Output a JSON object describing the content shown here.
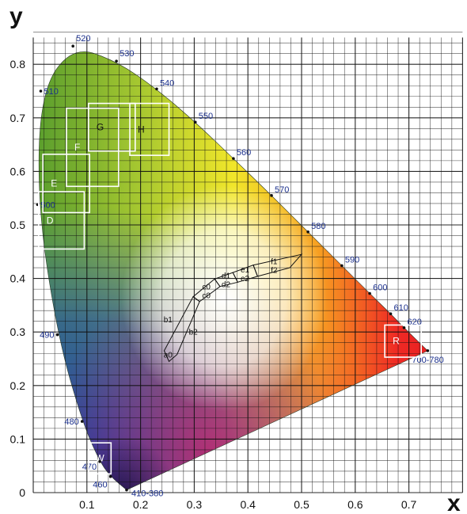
{
  "chart_data": {
    "type": "scatter",
    "title": "",
    "xlabel": "x",
    "ylabel": "y",
    "xlim": [
      0,
      0.8
    ],
    "ylim": [
      0,
      0.85
    ],
    "x_ticks": [
      {
        "value": 0.1,
        "label": "0.1"
      },
      {
        "value": 0.2,
        "label": "0.2"
      },
      {
        "value": 0.3,
        "label": "0.3"
      },
      {
        "value": 0.4,
        "label": "0.4"
      },
      {
        "value": 0.5,
        "label": "0.5"
      },
      {
        "value": 0.6,
        "label": "0.6"
      },
      {
        "value": 0.7,
        "label": "0.7"
      }
    ],
    "y_ticks": [
      {
        "value": 0,
        "label": "0"
      },
      {
        "value": 0.1,
        "label": "0.1"
      },
      {
        "value": 0.2,
        "label": "0.2"
      },
      {
        "value": 0.3,
        "label": "0.3"
      },
      {
        "value": 0.4,
        "label": "0.4"
      },
      {
        "value": 0.5,
        "label": "0.5"
      },
      {
        "value": 0.6,
        "label": "0.6"
      },
      {
        "value": 0.7,
        "label": "0.7"
      },
      {
        "value": 0.8,
        "label": "0.8"
      }
    ],
    "grid": true,
    "spectral_locus": [
      {
        "label": "410-380",
        "x": 0.174,
        "y": 0.005
      },
      {
        "label": "460",
        "x": 0.144,
        "y": 0.03
      },
      {
        "label": "470",
        "x": 0.124,
        "y": 0.058
      },
      {
        "label": "480",
        "x": 0.091,
        "y": 0.133
      },
      {
        "label": "490",
        "x": 0.045,
        "y": 0.295
      },
      {
        "label": "500",
        "x": 0.008,
        "y": 0.538
      },
      {
        "label": "510",
        "x": 0.014,
        "y": 0.75
      },
      {
        "label": "520",
        "x": 0.074,
        "y": 0.834
      },
      {
        "label": "530",
        "x": 0.155,
        "y": 0.806
      },
      {
        "label": "540",
        "x": 0.23,
        "y": 0.754
      },
      {
        "label": "550",
        "x": 0.302,
        "y": 0.692
      },
      {
        "label": "560",
        "x": 0.373,
        "y": 0.624
      },
      {
        "label": "570",
        "x": 0.444,
        "y": 0.555
      },
      {
        "label": "580",
        "x": 0.512,
        "y": 0.487
      },
      {
        "label": "590",
        "x": 0.575,
        "y": 0.424
      },
      {
        "label": "600",
        "x": 0.627,
        "y": 0.372
      },
      {
        "label": "610",
        "x": 0.666,
        "y": 0.334
      },
      {
        "label": "620",
        "x": 0.691,
        "y": 0.308
      },
      {
        "label": "700-780",
        "x": 0.735,
        "y": 0.265
      }
    ],
    "boxes": [
      {
        "label": "W",
        "x": [
          0.103,
          0.145
        ],
        "y": [
          0.035,
          0.093
        ]
      },
      {
        "label": "D",
        "x": [
          0.01,
          0.095
        ],
        "y": [
          0.455,
          0.562
        ]
      },
      {
        "label": "E",
        "x": [
          0.018,
          0.105
        ],
        "y": [
          0.523,
          0.632
        ]
      },
      {
        "label": "F",
        "x": [
          0.062,
          0.159
        ],
        "y": [
          0.572,
          0.718
        ]
      },
      {
        "label": "G",
        "x": [
          0.103,
          0.19
        ],
        "y": [
          0.638,
          0.727
        ]
      },
      {
        "label": "H",
        "x": [
          0.18,
          0.253
        ],
        "y": [
          0.63,
          0.727
        ]
      },
      {
        "label": "R",
        "x": [
          0.655,
          0.723
        ],
        "y": [
          0.253,
          0.313
        ]
      }
    ],
    "zones": [
      {
        "labels": [
          "a0",
          "b1",
          "b2"
        ],
        "polygon": [
          [
            0.253,
            0.245
          ],
          [
            0.268,
            0.258
          ],
          [
            0.31,
            0.357
          ],
          [
            0.298,
            0.366
          ],
          [
            0.244,
            0.265
          ]
        ]
      },
      {
        "labels": [
          "c0",
          "c0"
        ],
        "polygon": [
          [
            0.298,
            0.366
          ],
          [
            0.31,
            0.357
          ],
          [
            0.348,
            0.385
          ],
          [
            0.338,
            0.399
          ]
        ]
      },
      {
        "labels": [
          "d1",
          "d2"
        ],
        "polygon": [
          [
            0.338,
            0.399
          ],
          [
            0.348,
            0.385
          ],
          [
            0.381,
            0.393
          ],
          [
            0.372,
            0.411
          ]
        ]
      },
      {
        "labels": [
          "e1",
          "e2"
        ],
        "polygon": [
          [
            0.372,
            0.411
          ],
          [
            0.381,
            0.393
          ],
          [
            0.418,
            0.404
          ],
          [
            0.41,
            0.425
          ]
        ]
      },
      {
        "labels": [
          "f1",
          "f2"
        ],
        "polygon": [
          [
            0.41,
            0.425
          ],
          [
            0.418,
            0.404
          ],
          [
            0.478,
            0.42
          ],
          [
            0.5,
            0.445
          ]
        ]
      }
    ]
  }
}
